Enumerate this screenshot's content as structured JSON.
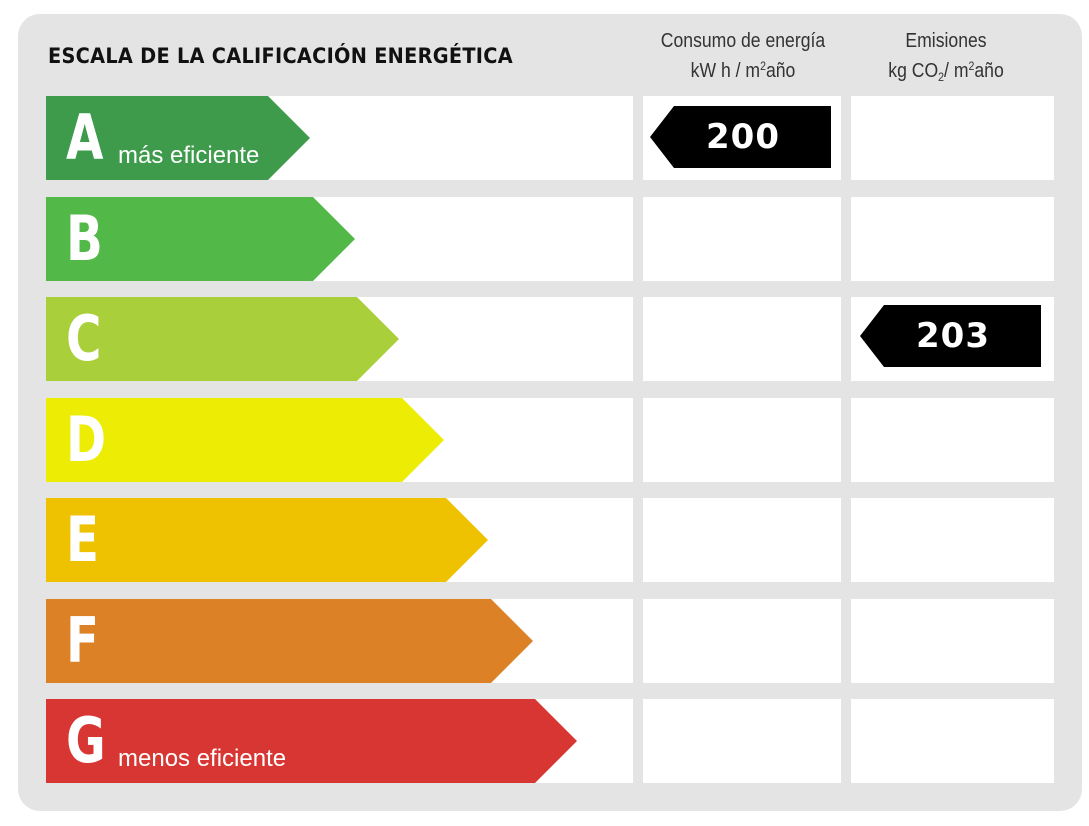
{
  "title": "ESCALA DE LA CALIFICACIÓN ENERGÉTICA",
  "columns": {
    "consumo": {
      "line1": "Consumo de energía",
      "line2_pre": "kW h / m",
      "line2_sup": "2",
      "line2_post": "año"
    },
    "emisiones": {
      "line1": "Emisiones",
      "line2_pre": "kg CO",
      "line2_sub": "2",
      "line2_mid": "/ m",
      "line2_sup": "2",
      "line2_post": "año"
    }
  },
  "chart_data": {
    "type": "table",
    "title": "ESCALA DE LA CALIFICACIÓN ENERGÉTICA",
    "classes": [
      {
        "letter": "A",
        "note": "más eficiente",
        "color": "#3e9b4b"
      },
      {
        "letter": "B",
        "note": "",
        "color": "#52b848"
      },
      {
        "letter": "C",
        "note": "",
        "color": "#a9cf3a"
      },
      {
        "letter": "D",
        "note": "",
        "color": "#ecec04"
      },
      {
        "letter": "E",
        "note": "",
        "color": "#eec101"
      },
      {
        "letter": "F",
        "note": "",
        "color": "#dc8126"
      },
      {
        "letter": "G",
        "note": "menos eficiente",
        "color": "#d83632"
      }
    ],
    "consumo": {
      "class": "A",
      "value": "200"
    },
    "emisiones": {
      "class": "C",
      "value": "203"
    }
  }
}
